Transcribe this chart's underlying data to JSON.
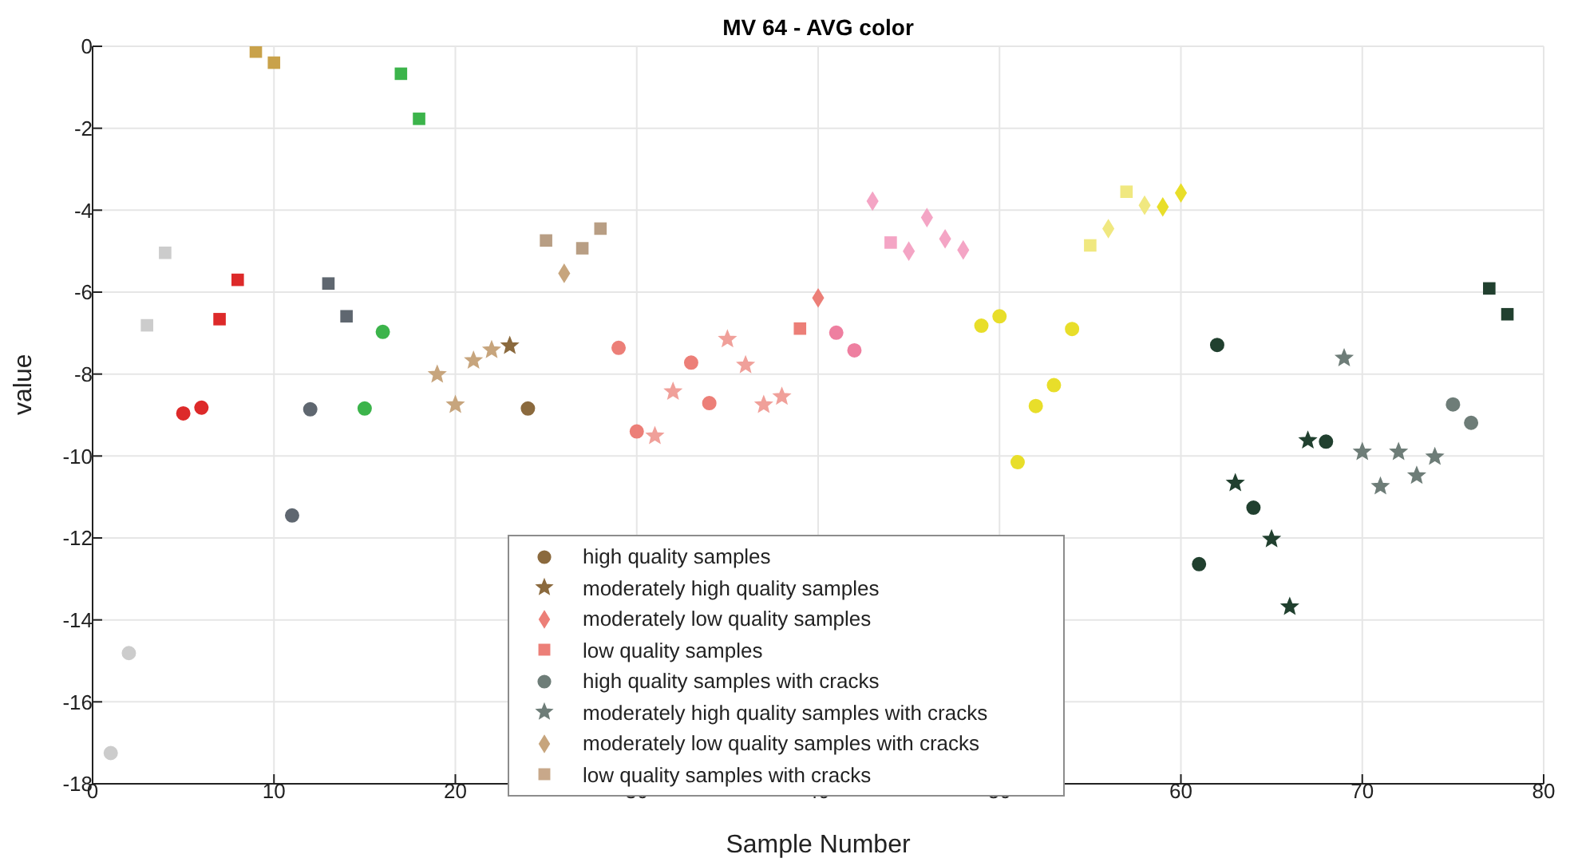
{
  "chart_data": {
    "type": "scatter",
    "title": "MV 64 - AVG color",
    "xlabel": "Sample Number",
    "ylabel": "value",
    "xlim": [
      0,
      80
    ],
    "xticks": [
      0,
      10,
      20,
      30,
      40,
      50,
      60,
      70,
      80
    ],
    "ylim": [
      -18,
      0
    ],
    "yticks": [
      -18,
      -16,
      -14,
      -12,
      -10,
      -8,
      -6,
      -4,
      -2,
      0
    ],
    "grid": true,
    "legend": "bottom",
    "series": [
      {
        "name": "high quality samples",
        "marker": "circle",
        "color": "#8b6a3e",
        "x": [
          1,
          2,
          5,
          6,
          11,
          12,
          15,
          16,
          24,
          29,
          30,
          33,
          34,
          41,
          42,
          49,
          50,
          51,
          52,
          53,
          54,
          61,
          62,
          64,
          68
        ],
        "values": [
          -17.25,
          -14.81,
          -8.96,
          -8.82,
          -11.45,
          -8.86,
          -8.84,
          -6.97,
          -8.84,
          -7.36,
          -9.4,
          -7.72,
          -8.71,
          -6.99,
          -7.42,
          -6.82,
          -6.59,
          -10.15,
          -8.78,
          -8.27,
          -6.9,
          -12.64,
          -7.29,
          -11.26,
          -9.65
        ],
        "colors": [
          "#cccccc",
          "#cccccc",
          "#dd2a2a",
          "#dd2a2a",
          "#5f6770",
          "#5f6770",
          "#3cb44b",
          "#3cb44b",
          "#8b6a3e",
          "#ec7f78",
          "#ec7f78",
          "#ec7f78",
          "#ec7f78",
          "#ee7fa0",
          "#ee7fa0",
          "#e8de2a",
          "#e8de2a",
          "#e8de2a",
          "#e8de2a",
          "#e8de2a",
          "#e8de2a",
          "#21402f",
          "#21402f",
          "#21402f",
          "#21402f"
        ]
      },
      {
        "name": "moderately high quality samples",
        "marker": "star",
        "color": "#8b6a3e",
        "x": [
          23,
          63,
          65,
          66,
          67
        ],
        "values": [
          -7.31,
          -10.66,
          -12.03,
          -13.68,
          -9.62
        ],
        "colors": [
          "#8b6a3e",
          "#21402f",
          "#21402f",
          "#21402f",
          "#21402f"
        ]
      },
      {
        "name": "moderately low quality samples",
        "marker": "diamond",
        "color": "#ec7f78",
        "x": [
          40,
          59,
          60
        ],
        "values": [
          -6.14,
          -3.92,
          -3.58
        ],
        "colors": [
          "#ec7f78",
          "#e8de2a",
          "#e8de2a"
        ]
      },
      {
        "name": "low quality samples",
        "marker": "square",
        "color": "#ec7f78",
        "x": [
          3,
          4,
          7,
          8,
          9,
          10,
          13,
          14,
          17,
          18,
          39,
          77,
          78
        ],
        "values": [
          -6.81,
          -5.04,
          -6.66,
          -5.7,
          -0.13,
          -0.4,
          -5.79,
          -6.59,
          -0.67,
          -1.77,
          -6.89,
          -5.91,
          -6.54
        ],
        "colors": [
          "#cccccc",
          "#cccccc",
          "#dd2a2a",
          "#dd2a2a",
          "#c9a24a",
          "#c9a24a",
          "#5f6770",
          "#5f6770",
          "#3cb44b",
          "#3cb44b",
          "#ec7f78",
          "#21402f",
          "#21402f"
        ]
      },
      {
        "name": "high quality samples with cracks",
        "marker": "circle",
        "color": "#6e7d78",
        "x": [
          75,
          76
        ],
        "values": [
          -8.74,
          -9.19
        ],
        "colors": [
          "#6e7d78",
          "#6e7d78"
        ]
      },
      {
        "name": "moderately high quality samples with cracks",
        "marker": "star",
        "color": "#6e7d78",
        "x": [
          19,
          20,
          21,
          22,
          31,
          32,
          35,
          36,
          37,
          38,
          69,
          70,
          71,
          72,
          73,
          74
        ],
        "values": [
          -8.01,
          -8.75,
          -7.67,
          -7.41,
          -9.51,
          -8.43,
          -7.15,
          -7.78,
          -8.75,
          -8.55,
          -7.61,
          -9.9,
          -10.74,
          -9.9,
          -10.48,
          -10.02
        ],
        "colors": [
          "#c7a57d",
          "#c7a57d",
          "#c7a57d",
          "#c7a57d",
          "#f0a09a",
          "#f0a09a",
          "#f0a09a",
          "#f0a09a",
          "#f0a09a",
          "#f0a09a",
          "#6e7d78",
          "#6e7d78",
          "#6e7d78",
          "#6e7d78",
          "#6e7d78",
          "#6e7d78"
        ]
      },
      {
        "name": "moderately low quality samples with cracks",
        "marker": "diamond",
        "color": "#c7a57d",
        "x": [
          26,
          43,
          45,
          46,
          47,
          48,
          56,
          58
        ],
        "values": [
          -5.54,
          -3.78,
          -5.0,
          -4.18,
          -4.7,
          -4.97,
          -4.45,
          -3.88
        ],
        "colors": [
          "#c7a57d",
          "#f4a5c5",
          "#f4a5c5",
          "#f4a5c5",
          "#f4a5c5",
          "#f4a5c5",
          "#f0e880",
          "#f0e880"
        ]
      },
      {
        "name": "low quality samples with cracks",
        "marker": "square",
        "color": "#c8a88a",
        "x": [
          25,
          27,
          28,
          44,
          55,
          57
        ],
        "values": [
          -4.74,
          -4.93,
          -4.45,
          -4.79,
          -4.86,
          -3.55
        ],
        "colors": [
          "#b89e84",
          "#b89e84",
          "#b89e84",
          "#f4a5c5",
          "#f0e880",
          "#f0e880"
        ]
      }
    ]
  }
}
